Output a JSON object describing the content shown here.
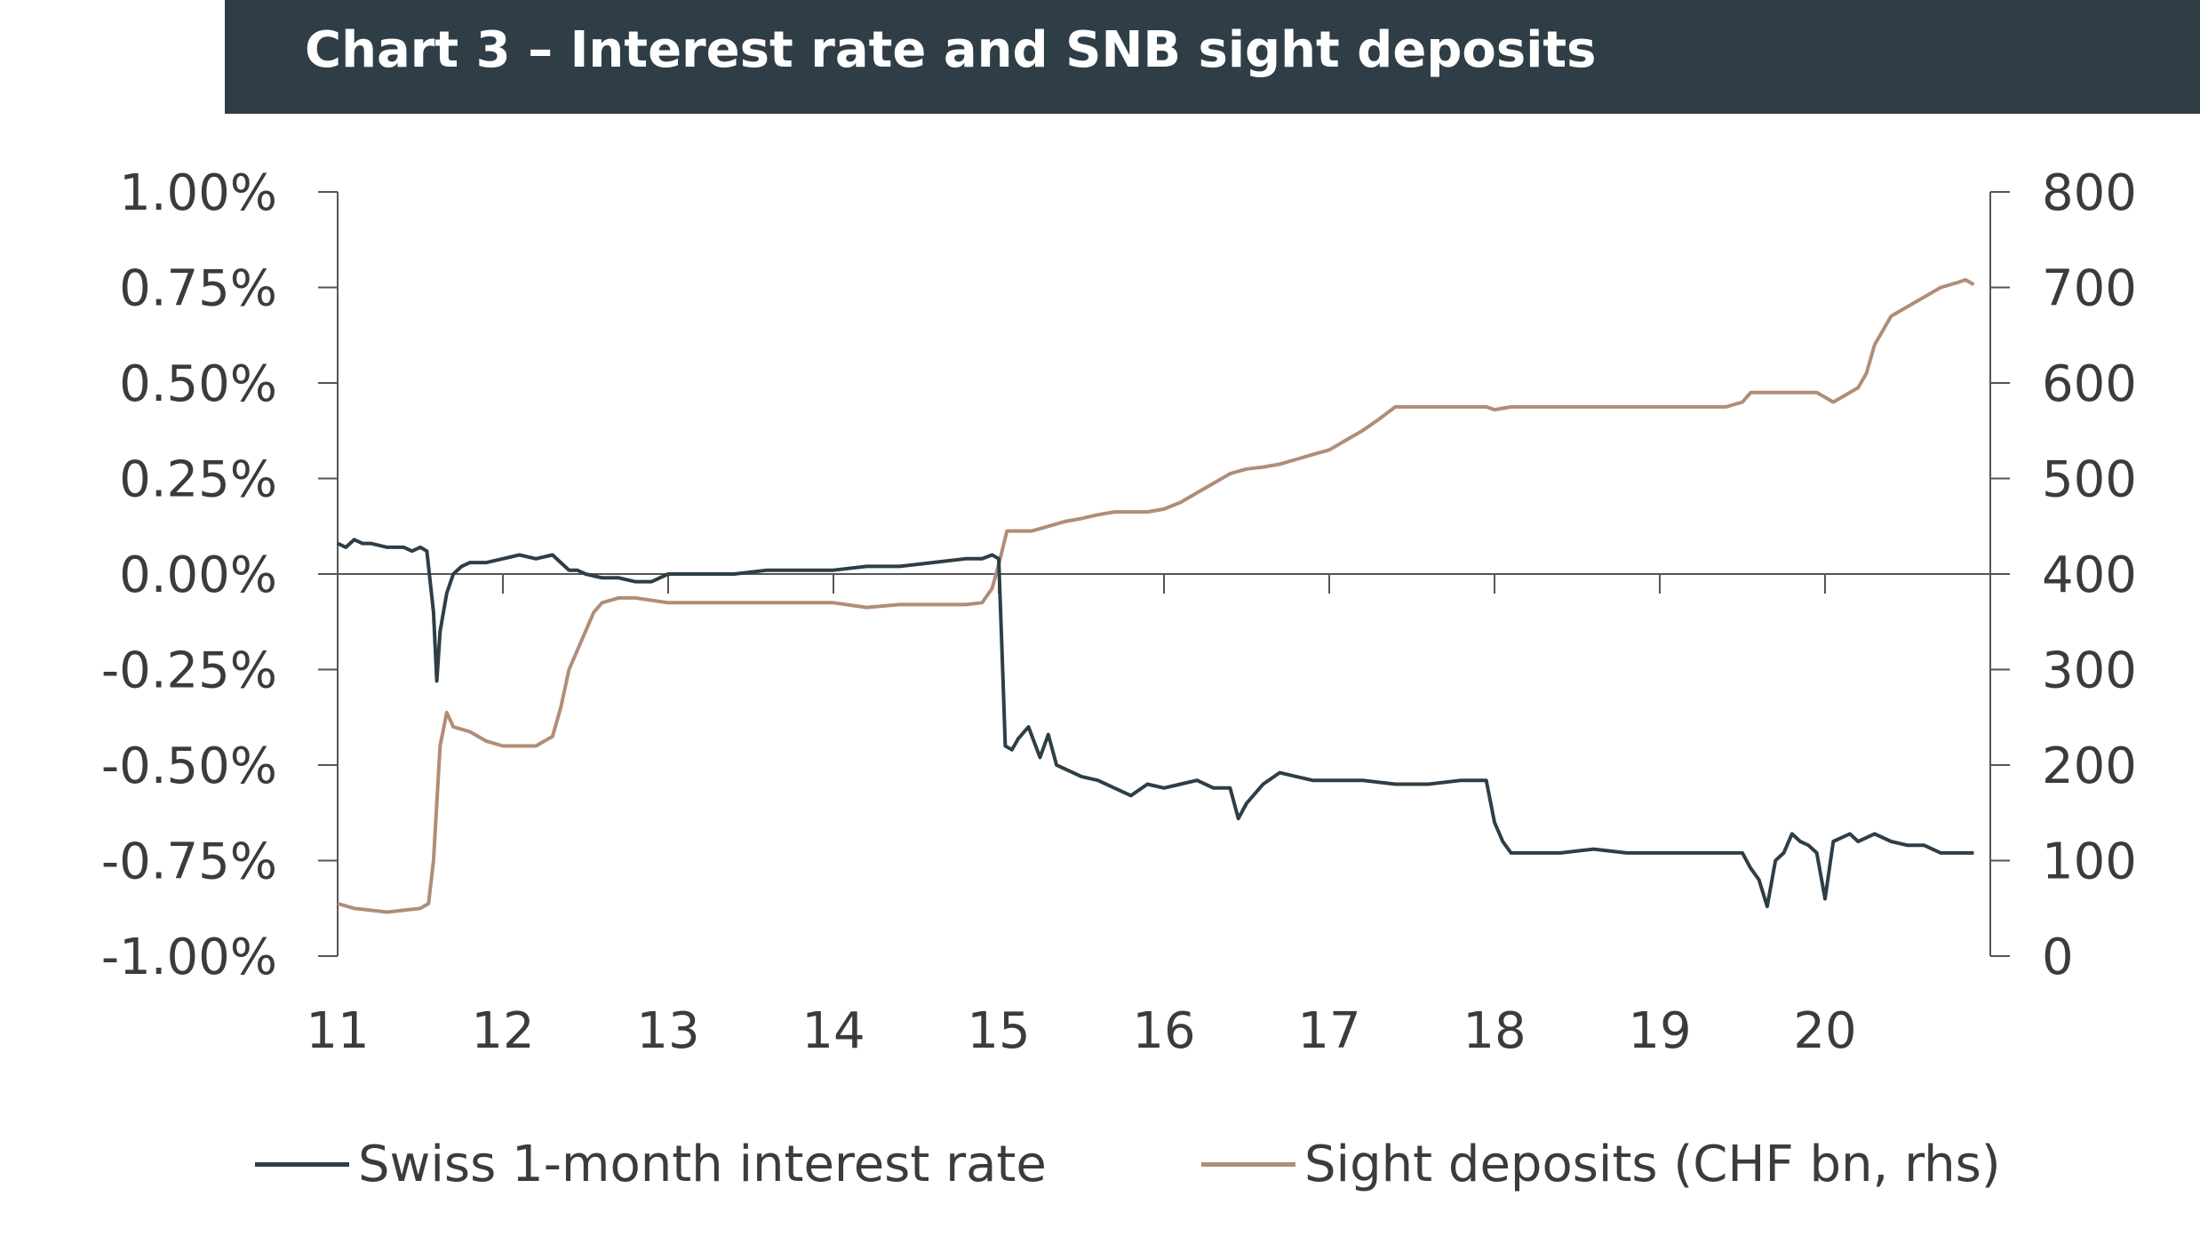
{
  "title": "Chart 3 – Interest rate and SNB sight deposits",
  "colors": {
    "title_bg": "#2f3e46",
    "rate": "#2f3e46",
    "deposits": "#b08d78",
    "axis": "#555555"
  },
  "chart_data": {
    "type": "line",
    "title": "Chart 3 – Interest rate and SNB sight deposits",
    "xlabel": "",
    "ylabel": "",
    "y2label": "",
    "grid": false,
    "legend_position": "bottom",
    "x_ticks": [
      "11",
      "12",
      "13",
      "14",
      "15",
      "16",
      "17",
      "18",
      "19",
      "20"
    ],
    "xlim": [
      2011,
      2021
    ],
    "y_ticks": [
      "1.00%",
      "0.75%",
      "0.50%",
      "0.25%",
      "0.00%",
      "-0.25%",
      "-0.50%",
      "-0.75%",
      "-1.00%"
    ],
    "ylim": [
      -1.0,
      1.0
    ],
    "y2_ticks": [
      "800",
      "700",
      "600",
      "500",
      "400",
      "300",
      "200",
      "100",
      "0"
    ],
    "y2lim": [
      0,
      800
    ],
    "series": [
      {
        "name": "Swiss 1-month interest rate",
        "axis": "left",
        "unit": "%",
        "x": [
          2011.0,
          2011.05,
          2011.1,
          2011.15,
          2011.2,
          2011.3,
          2011.4,
          2011.45,
          2011.5,
          2011.54,
          2011.58,
          2011.6,
          2011.62,
          2011.66,
          2011.7,
          2011.75,
          2011.8,
          2011.9,
          2012.0,
          2012.1,
          2012.2,
          2012.3,
          2012.35,
          2012.4,
          2012.45,
          2012.5,
          2012.6,
          2012.7,
          2012.8,
          2012.9,
          2013.0,
          2013.2,
          2013.4,
          2013.6,
          2013.8,
          2014.0,
          2014.2,
          2014.4,
          2014.6,
          2014.8,
          2014.9,
          2014.96,
          2015.0,
          2015.02,
          2015.04,
          2015.08,
          2015.12,
          2015.18,
          2015.25,
          2015.3,
          2015.35,
          2015.4,
          2015.45,
          2015.5,
          2015.6,
          2015.7,
          2015.8,
          2015.9,
          2016.0,
          2016.1,
          2016.2,
          2016.3,
          2016.4,
          2016.45,
          2016.5,
          2016.6,
          2016.7,
          2016.8,
          2016.9,
          2017.0,
          2017.2,
          2017.4,
          2017.6,
          2017.8,
          2017.95,
          2018.0,
          2018.05,
          2018.1,
          2018.2,
          2018.4,
          2018.6,
          2018.8,
          2019.0,
          2019.2,
          2019.4,
          2019.5,
          2019.55,
          2019.6,
          2019.65,
          2019.7,
          2019.75,
          2019.8,
          2019.85,
          2019.9,
          2019.95,
          2020.0,
          2020.05,
          2020.1,
          2020.15,
          2020.2,
          2020.3,
          2020.4,
          2020.5,
          2020.6,
          2020.7,
          2020.8,
          2020.9
        ],
        "y": [
          0.08,
          0.07,
          0.09,
          0.08,
          0.08,
          0.07,
          0.07,
          0.06,
          0.07,
          0.06,
          -0.1,
          -0.28,
          -0.15,
          -0.05,
          0.0,
          0.02,
          0.03,
          0.03,
          0.04,
          0.05,
          0.04,
          0.05,
          0.03,
          0.01,
          0.01,
          0.0,
          -0.01,
          -0.01,
          -0.02,
          -0.02,
          0.0,
          0.0,
          0.0,
          0.01,
          0.01,
          0.01,
          0.02,
          0.02,
          0.03,
          0.04,
          0.04,
          0.05,
          0.04,
          -0.2,
          -0.45,
          -0.46,
          -0.43,
          -0.4,
          -0.48,
          -0.42,
          -0.5,
          -0.51,
          -0.52,
          -0.53,
          -0.54,
          -0.56,
          -0.58,
          -0.55,
          -0.56,
          -0.55,
          -0.54,
          -0.56,
          -0.56,
          -0.64,
          -0.6,
          -0.55,
          -0.52,
          -0.53,
          -0.54,
          -0.54,
          -0.54,
          -0.55,
          -0.55,
          -0.54,
          -0.54,
          -0.65,
          -0.7,
          -0.73,
          -0.73,
          -0.73,
          -0.72,
          -0.73,
          -0.73,
          -0.73,
          -0.73,
          -0.73,
          -0.77,
          -0.8,
          -0.87,
          -0.75,
          -0.73,
          -0.68,
          -0.7,
          -0.71,
          -0.73,
          -0.85,
          -0.7,
          -0.69,
          -0.68,
          -0.7,
          -0.68,
          -0.7,
          -0.71,
          -0.71,
          -0.73,
          -0.73,
          -0.73
        ]
      },
      {
        "name": "Sight deposits (CHF bn, rhs)",
        "axis": "right",
        "unit": "CHF bn",
        "x": [
          2011.0,
          2011.1,
          2011.2,
          2011.3,
          2011.4,
          2011.5,
          2011.55,
          2011.58,
          2011.62,
          2011.66,
          2011.7,
          2011.8,
          2011.9,
          2012.0,
          2012.1,
          2012.2,
          2012.3,
          2012.35,
          2012.4,
          2012.45,
          2012.5,
          2012.55,
          2012.6,
          2012.7,
          2012.8,
          2013.0,
          2013.2,
          2013.4,
          2013.6,
          2013.8,
          2014.0,
          2014.2,
          2014.4,
          2014.6,
          2014.8,
          2014.9,
          2014.96,
          2015.0,
          2015.05,
          2015.1,
          2015.2,
          2015.3,
          2015.4,
          2015.5,
          2015.6,
          2015.7,
          2015.8,
          2015.9,
          2016.0,
          2016.1,
          2016.2,
          2016.3,
          2016.4,
          2016.5,
          2016.6,
          2016.7,
          2016.8,
          2016.9,
          2017.0,
          2017.1,
          2017.2,
          2017.3,
          2017.4,
          2017.6,
          2017.8,
          2017.95,
          2018.0,
          2018.1,
          2018.3,
          2018.5,
          2018.7,
          2018.9,
          2019.0,
          2019.2,
          2019.4,
          2019.5,
          2019.55,
          2019.6,
          2019.65,
          2019.7,
          2019.8,
          2019.9,
          2019.95,
          2020.0,
          2020.05,
          2020.1,
          2020.15,
          2020.2,
          2020.25,
          2020.3,
          2020.4,
          2020.5,
          2020.6,
          2020.7,
          2020.8,
          2020.85,
          2020.9
        ],
        "y": [
          55,
          50,
          48,
          46,
          48,
          50,
          55,
          100,
          220,
          255,
          240,
          235,
          225,
          220,
          220,
          220,
          230,
          260,
          300,
          320,
          340,
          360,
          370,
          375,
          375,
          370,
          370,
          370,
          370,
          370,
          370,
          365,
          368,
          368,
          368,
          370,
          385,
          410,
          445,
          445,
          445,
          450,
          455,
          458,
          462,
          465,
          465,
          465,
          468,
          475,
          485,
          495,
          505,
          510,
          512,
          515,
          520,
          525,
          530,
          540,
          550,
          562,
          575,
          575,
          575,
          575,
          572,
          575,
          575,
          575,
          575,
          575,
          575,
          575,
          575,
          580,
          590,
          590,
          590,
          590,
          590,
          590,
          590,
          585,
          580,
          585,
          590,
          595,
          610,
          640,
          670,
          680,
          690,
          700,
          705,
          708,
          703
        ]
      }
    ]
  }
}
